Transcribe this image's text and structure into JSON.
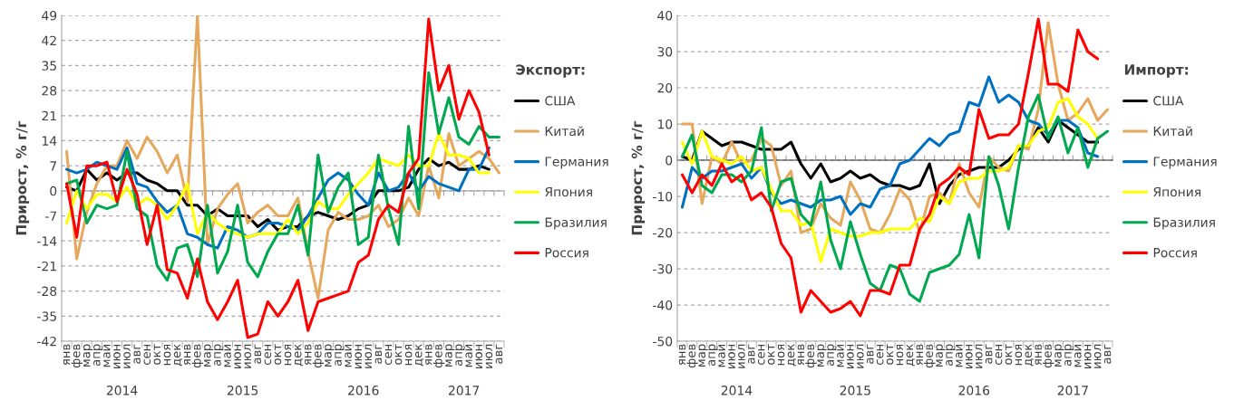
{
  "chart_data": [
    {
      "type": "line",
      "ylabel": "Прирост, % г/г",
      "legend_title": "Экспорт:",
      "legend": "right",
      "grid": "y",
      "line_style": "solid",
      "categories": [
        "янв",
        "фев",
        "мар",
        "апр",
        "май",
        "июн",
        "июл",
        "авг",
        "сен",
        "окт",
        "ноя",
        "дек",
        "янв",
        "фев",
        "мар",
        "апр",
        "май",
        "июн",
        "июл",
        "авг",
        "сен",
        "окт",
        "ноя",
        "дек",
        "янв",
        "фев",
        "мар",
        "апр",
        "май",
        "июн",
        "июл",
        "авг",
        "сен",
        "окт",
        "ноя",
        "дек",
        "янв",
        "фев",
        "мар",
        "апр",
        "май",
        "июн",
        "июл",
        "авг"
      ],
      "annotations": [
        "2014",
        "2015",
        "2016",
        "2017"
      ],
      "ylim": [
        -42,
        49
      ],
      "yticks": [
        -42,
        -35,
        -28,
        -21,
        -14,
        -7,
        0,
        7,
        14,
        21,
        28,
        35,
        42,
        49
      ],
      "series": [
        {
          "name": "США",
          "color": "#000000",
          "values": [
            1,
            0,
            6,
            3,
            5,
            3,
            5,
            5,
            3,
            2,
            0,
            0,
            -4,
            -4,
            -7,
            -5,
            -7,
            -7,
            -7,
            -10,
            -8,
            -11,
            -10,
            -10,
            -7,
            -6,
            -7,
            -8,
            -7,
            -5,
            -4,
            0,
            0,
            0,
            1,
            6,
            9,
            7,
            8,
            6,
            6,
            7,
            6,
            null
          ]
        },
        {
          "name": "Китай",
          "color": "#e6a85c",
          "values": [
            11,
            -19,
            -6,
            2,
            7,
            7,
            14,
            9,
            15,
            11,
            5,
            10,
            -3,
            49,
            -15,
            -5,
            -1,
            2,
            -9,
            -6,
            -4,
            -7,
            -7,
            -2,
            -17,
            -30,
            -11,
            -6,
            -8,
            -8,
            -7,
            -4,
            -10,
            -8,
            -2,
            -7,
            7,
            -2,
            16,
            7,
            9,
            11,
            9,
            5
          ]
        },
        {
          "name": "Германия",
          "color": "#0070c0",
          "values": [
            6,
            5,
            6,
            8,
            7,
            6,
            12,
            2,
            1,
            -3,
            -6,
            -4,
            -12,
            -13,
            -15,
            -16,
            -10,
            -11,
            -13,
            -12,
            -9,
            -9,
            -10,
            -11,
            -7,
            -2,
            3,
            5,
            3,
            -1,
            -4,
            5,
            0,
            1,
            5,
            0,
            4,
            2,
            1,
            0,
            6,
            6,
            12,
            null
          ]
        },
        {
          "name": "Япония",
          "color": "#ffff00",
          "values": [
            -9,
            0,
            -5,
            -1,
            -1,
            -3,
            1,
            -4,
            -2,
            -4,
            -8,
            -4,
            2,
            -12,
            -6,
            -9,
            -11,
            -12,
            -13,
            -12,
            -12,
            -12,
            -8,
            -12,
            -9,
            -3,
            -5,
            -5,
            -1,
            2,
            5,
            9,
            8,
            7,
            10,
            7,
            7,
            16,
            10,
            10,
            9,
            5,
            5,
            null
          ]
        },
        {
          "name": "Бразилия",
          "color": "#00a84f",
          "values": [
            2,
            3,
            -9,
            -4,
            -5,
            -4,
            11,
            -5,
            -7,
            -21,
            -25,
            -16,
            -15,
            -24,
            -4,
            -23,
            -17,
            -4,
            -20,
            -24,
            -17,
            -12,
            -12,
            -4,
            -18,
            10,
            -6,
            1,
            5,
            -15,
            -13,
            10,
            -5,
            -15,
            18,
            -5,
            33,
            16,
            26,
            15,
            13,
            18,
            15,
            15
          ]
        },
        {
          "name": "Россия",
          "color": "#ff0000",
          "values": [
            2,
            -13,
            7,
            7,
            8,
            -3,
            6,
            -1,
            -15,
            -4,
            -22,
            -23,
            -30,
            -19,
            -31,
            -36,
            -31,
            -25,
            -41,
            -40,
            -31,
            -35,
            -31,
            -25,
            -39,
            -31,
            -30,
            -29,
            -28,
            -20,
            -18,
            -8,
            -4,
            -6,
            5,
            9,
            48,
            28,
            35,
            20,
            28,
            22,
            10,
            null
          ]
        }
      ]
    },
    {
      "type": "line",
      "ylabel": "Прирост, % г/г",
      "legend_title": "Импорт:",
      "legend": "right",
      "grid": "y",
      "line_style": "solid",
      "categories": [
        "янв",
        "фев",
        "мар",
        "апр",
        "май",
        "июн",
        "июл",
        "авг",
        "сен",
        "окт",
        "ноя",
        "дек",
        "янв",
        "фев",
        "мар",
        "апр",
        "май",
        "июн",
        "июл",
        "авг",
        "сен",
        "окт",
        "ноя",
        "дек",
        "янв",
        "фев",
        "мар",
        "апр",
        "май",
        "июн",
        "июл",
        "авг",
        "сен",
        "окт",
        "ноя",
        "дек",
        "янв",
        "фев",
        "мар",
        "апр",
        "май",
        "июн",
        "июл",
        "авг"
      ],
      "annotations": [
        "2014",
        "2015",
        "2016",
        "2017"
      ],
      "ylim": [
        -50,
        40
      ],
      "yticks": [
        -50,
        -40,
        -30,
        -20,
        -10,
        0,
        10,
        20,
        30,
        40
      ],
      "series": [
        {
          "name": "США",
          "color": "#000000",
          "values": [
            1,
            0,
            8,
            6,
            4,
            5,
            5,
            4,
            3,
            3,
            3,
            5,
            -1,
            -5,
            -1,
            -6,
            -5,
            -3,
            -5,
            -4,
            -6,
            -7,
            -7,
            -8,
            -7,
            -1,
            -12,
            -7,
            -4,
            -3,
            -2,
            -2,
            -2,
            0,
            3,
            4,
            9,
            5,
            11,
            9,
            7,
            5,
            5,
            null
          ]
        },
        {
          "name": "Китай",
          "color": "#e6a85c",
          "values": [
            10,
            10,
            -12,
            1,
            -1,
            5,
            -1,
            0,
            6,
            4,
            -7,
            -3,
            -20,
            -19,
            -12,
            -16,
            -18,
            -6,
            -11,
            -19,
            -20,
            -15,
            -8,
            -11,
            -20,
            -10,
            -9,
            -12,
            -1,
            -9,
            -13,
            1,
            -2,
            -3,
            4,
            3,
            14,
            38,
            21,
            11,
            13,
            17,
            11,
            14
          ]
        },
        {
          "name": "Германия",
          "color": "#0070c0",
          "values": [
            -13,
            -2,
            -5,
            -3,
            -3,
            -2,
            -1,
            -5,
            -2,
            -9,
            -12,
            -11,
            -12,
            -13,
            -11,
            -11,
            -10,
            -15,
            -12,
            -13,
            -8,
            -7,
            -1,
            0,
            3,
            6,
            4,
            7,
            8,
            16,
            15,
            23,
            16,
            18,
            16,
            11,
            10,
            7,
            11,
            11,
            9,
            2,
            1,
            null
          ]
        },
        {
          "name": "Япония",
          "color": "#ffff00",
          "values": [
            5,
            -1,
            8,
            1,
            0,
            -1,
            1,
            -3,
            -2,
            -8,
            -14,
            -14,
            -18,
            -17,
            -28,
            -19,
            -20,
            -21,
            -21,
            -20,
            -20,
            -19,
            -19,
            -19,
            -16,
            -17,
            -10,
            -12,
            -6,
            -5,
            -5,
            -3,
            -3,
            -2,
            4,
            4,
            8,
            9,
            16,
            17,
            12,
            10,
            6,
            null
          ]
        },
        {
          "name": "Бразилия",
          "color": "#00a84f",
          "values": [
            1,
            7,
            -7,
            -9,
            -4,
            -4,
            -6,
            -3,
            9,
            -14,
            -6,
            -5,
            -15,
            -18,
            -6,
            -22,
            -30,
            -17,
            -26,
            -34,
            -36,
            -29,
            -30,
            -37,
            -39,
            -31,
            -30,
            -29,
            -26,
            -15,
            -27,
            1,
            -7,
            -19,
            -2,
            12,
            18,
            6,
            12,
            2,
            9,
            -2,
            6,
            8
          ]
        },
        {
          "name": "Россия",
          "color": "#ff0000",
          "values": [
            -4,
            -9,
            -4,
            -7,
            -1,
            -6,
            -4,
            -11,
            -9,
            -13,
            -23,
            -27,
            -42,
            -36,
            -39,
            -42,
            -41,
            -39,
            -43,
            -36,
            -36,
            -37,
            -29,
            -29,
            -19,
            -15,
            -7,
            -5,
            -2,
            -4,
            14,
            6,
            7,
            7,
            10,
            24,
            39,
            21,
            21,
            19,
            36,
            30,
            28,
            null
          ]
        }
      ]
    }
  ]
}
